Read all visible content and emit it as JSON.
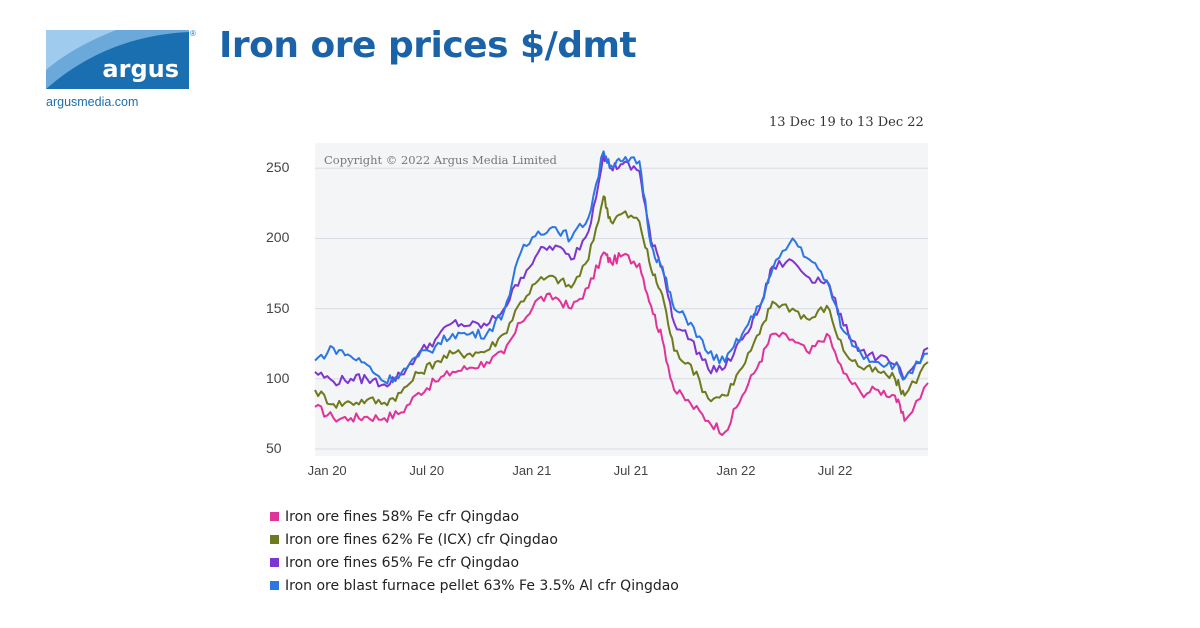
{
  "brand": {
    "logo_text": "argus",
    "registered_mark": "®",
    "website": "argusmedia.com",
    "color": "#1a6fb0"
  },
  "headline": "Iron ore prices $/dmt",
  "date_range": "13 Dec 19 to 13 Dec 22",
  "copyright": "Copyright © 2022 Argus Media Limited",
  "chart_data": {
    "type": "line",
    "title": "Iron ore prices $/dmt",
    "xlabel": "",
    "ylabel": "",
    "x": [
      "2019-12-13",
      "2020-01-15",
      "2020-02-15",
      "2020-03-15",
      "2020-04-15",
      "2020-05-15",
      "2020-06-15",
      "2020-07-15",
      "2020-08-15",
      "2020-09-15",
      "2020-10-15",
      "2020-11-15",
      "2020-12-15",
      "2021-01-15",
      "2021-02-15",
      "2021-03-15",
      "2021-04-15",
      "2021-05-12",
      "2021-05-25",
      "2021-06-15",
      "2021-07-15",
      "2021-08-05",
      "2021-08-25",
      "2021-09-15",
      "2021-10-15",
      "2021-11-15",
      "2021-12-15",
      "2022-01-15",
      "2022-02-15",
      "2022-03-10",
      "2022-04-15",
      "2022-05-15",
      "2022-06-15",
      "2022-07-15",
      "2022-08-15",
      "2022-09-15",
      "2022-10-15",
      "2022-11-01",
      "2022-12-13"
    ],
    "x_ticks": [
      "Jan 20",
      "Jul 20",
      "Jan 21",
      "Jul 21",
      "Jan 22",
      "Jul 22"
    ],
    "y_ticks": [
      50,
      100,
      150,
      200,
      250
    ],
    "ylim": [
      45,
      268
    ],
    "grid": true,
    "legend_position": "bottom",
    "series": [
      {
        "name": "Iron ore fines 58% Fe cfr Qingdao",
        "color": "#e0339a",
        "values": [
          80,
          72,
          72,
          73,
          72,
          76,
          90,
          98,
          105,
          108,
          112,
          118,
          140,
          157,
          158,
          150,
          165,
          190,
          183,
          188,
          182,
          152,
          128,
          92,
          82,
          70,
          62,
          88,
          112,
          132,
          128,
          118,
          132,
          104,
          90,
          92,
          88,
          70,
          97
        ]
      },
      {
        "name": "Iron ore fines 62% Fe (ICX) cfr Qingdao",
        "color": "#6e7a1c",
        "values": [
          92,
          82,
          83,
          85,
          83,
          90,
          104,
          112,
          118,
          118,
          120,
          132,
          155,
          170,
          172,
          165,
          185,
          230,
          212,
          218,
          212,
          178,
          160,
          120,
          110,
          86,
          88,
          108,
          132,
          155,
          150,
          142,
          152,
          120,
          108,
          105,
          100,
          88,
          112
        ]
      },
      {
        "name": "Iron ore fines 65% Fe cfr Qingdao",
        "color": "#7d35d0",
        "values": [
          105,
          98,
          100,
          100,
          96,
          103,
          118,
          128,
          140,
          138,
          138,
          150,
          172,
          190,
          195,
          185,
          205,
          260,
          250,
          253,
          248,
          198,
          180,
          140,
          128,
          107,
          108,
          128,
          150,
          180,
          184,
          172,
          170,
          138,
          120,
          115,
          110,
          100,
          122
        ]
      },
      {
        "name": "Iron ore blast furnace pellet 63% Fe 3.5% Al cfr Qingdao",
        "color": "#2b76e5",
        "values": [
          113,
          122,
          116,
          110,
          98,
          104,
          116,
          123,
          132,
          132,
          132,
          148,
          190,
          205,
          208,
          200,
          215,
          262,
          252,
          255,
          255,
          195,
          178,
          150,
          140,
          118,
          112,
          132,
          152,
          178,
          200,
          185,
          170,
          134,
          118,
          112,
          110,
          100,
          118
        ]
      }
    ]
  }
}
